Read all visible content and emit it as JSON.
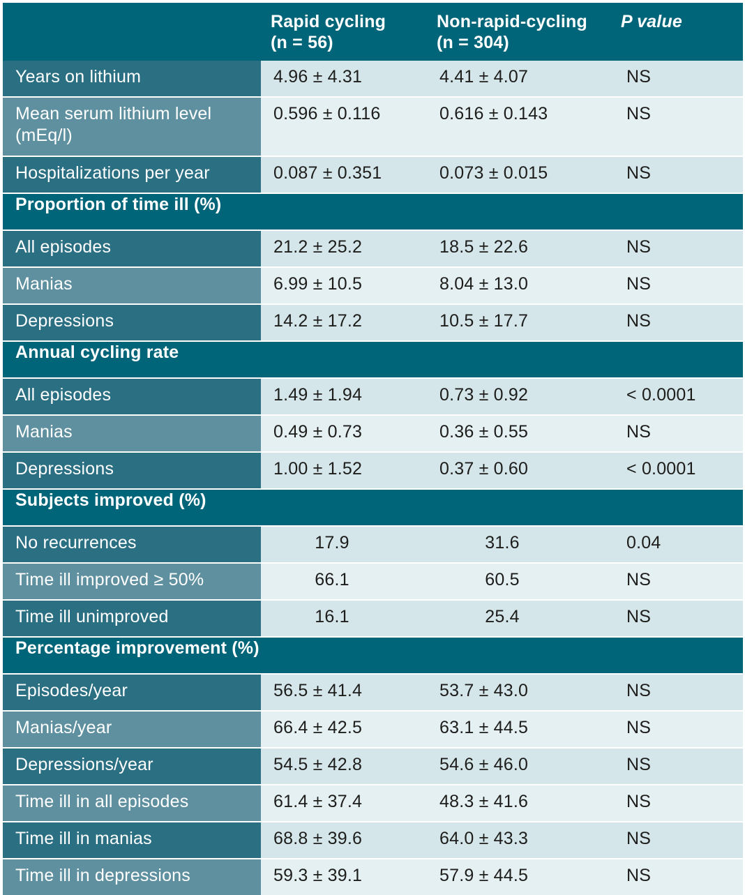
{
  "columns": {
    "label": "",
    "rapid": [
      "Rapid cycling",
      "(n = 56)"
    ],
    "nonrapid": [
      "Non-rapid-cycling",
      "(n = 304)"
    ],
    "p": "P value"
  },
  "rows": [
    {
      "kind": "data",
      "label": "Years on lithium",
      "rapid": "4.96 ± 4.31",
      "nonrapid": "4.41 ± 4.07",
      "p": "NS"
    },
    {
      "kind": "data",
      "label": "Mean serum lithium level (mEq/l)",
      "rapid": "0.596 ± 0.116",
      "nonrapid": "0.616 ± 0.143",
      "p": "NS"
    },
    {
      "kind": "data",
      "label": "Hospitalizations per year",
      "rapid": "0.087 ± 0.351",
      "nonrapid": "0.073 ± 0.015",
      "p": "NS"
    },
    {
      "kind": "section",
      "label": "Proportion of time ill (%)"
    },
    {
      "kind": "data",
      "label": "All episodes",
      "rapid": "21.2 ± 25.2",
      "nonrapid": "18.5 ± 22.6",
      "p": "NS"
    },
    {
      "kind": "data",
      "label": "Manias",
      "rapid": "6.99 ± 10.5",
      "nonrapid": "8.04 ± 13.0",
      "p": "NS"
    },
    {
      "kind": "data",
      "label": "Depressions",
      "rapid": "14.2 ± 17.2",
      "nonrapid": "10.5 ± 17.7",
      "p": "NS"
    },
    {
      "kind": "section",
      "label": "Annual cycling rate"
    },
    {
      "kind": "data",
      "label": "All episodes",
      "rapid": "1.49 ± 1.94",
      "nonrapid": "0.73 ± 0.92",
      "p": "< 0.0001"
    },
    {
      "kind": "data",
      "label": "Manias",
      "rapid": "0.49 ± 0.73",
      "nonrapid": "0.36 ± 0.55",
      "p": "NS"
    },
    {
      "kind": "data",
      "label": "Depressions",
      "rapid": "1.00 ± 1.52",
      "nonrapid": "0.37 ± 0.60",
      "p": "< 0.0001"
    },
    {
      "kind": "section",
      "label": "Subjects improved (%)"
    },
    {
      "kind": "data",
      "label": "No recurrences",
      "rapid": "17.9",
      "nonrapid": "31.6",
      "p": "0.04",
      "center": true
    },
    {
      "kind": "data",
      "label": "Time ill improved ≥ 50%",
      "rapid": "66.1",
      "nonrapid": "60.5",
      "p": "NS",
      "center": true
    },
    {
      "kind": "data",
      "label": "Time ill unimproved",
      "rapid": "16.1",
      "nonrapid": "25.4",
      "p": "NS",
      "center": true
    },
    {
      "kind": "section",
      "label": "Percentage improvement (%)"
    },
    {
      "kind": "data",
      "label": "Episodes/year",
      "rapid": "56.5 ± 41.4",
      "nonrapid": "53.7 ± 43.0",
      "p": "NS"
    },
    {
      "kind": "data",
      "label": "Manias/year",
      "rapid": "66.4 ± 42.5",
      "nonrapid": "63.1 ± 44.5",
      "p": "NS"
    },
    {
      "kind": "data",
      "label": "Depressions/year",
      "rapid": "54.5 ± 42.8",
      "nonrapid": "54.6 ± 46.0",
      "p": "NS"
    },
    {
      "kind": "data",
      "label": "Time ill in all episodes",
      "rapid": "61.4 ± 37.4",
      "nonrapid": "48.3 ± 41.6",
      "p": "NS"
    },
    {
      "kind": "data",
      "label": "Time ill in manias",
      "rapid": "68.8 ± 39.6",
      "nonrapid": "64.0 ± 43.3",
      "p": "NS"
    },
    {
      "kind": "data",
      "label": "Time ill in depressions",
      "rapid": "59.3 ± 39.1",
      "nonrapid": "57.9 ± 44.5",
      "p": "NS"
    }
  ],
  "colors": {
    "header_bg": "#006579",
    "label_dark": "#2b6f82",
    "label_light": "#5f909f",
    "value_bg": "#d5e6ea",
    "value_bg_alt": "#e5f0f2"
  }
}
